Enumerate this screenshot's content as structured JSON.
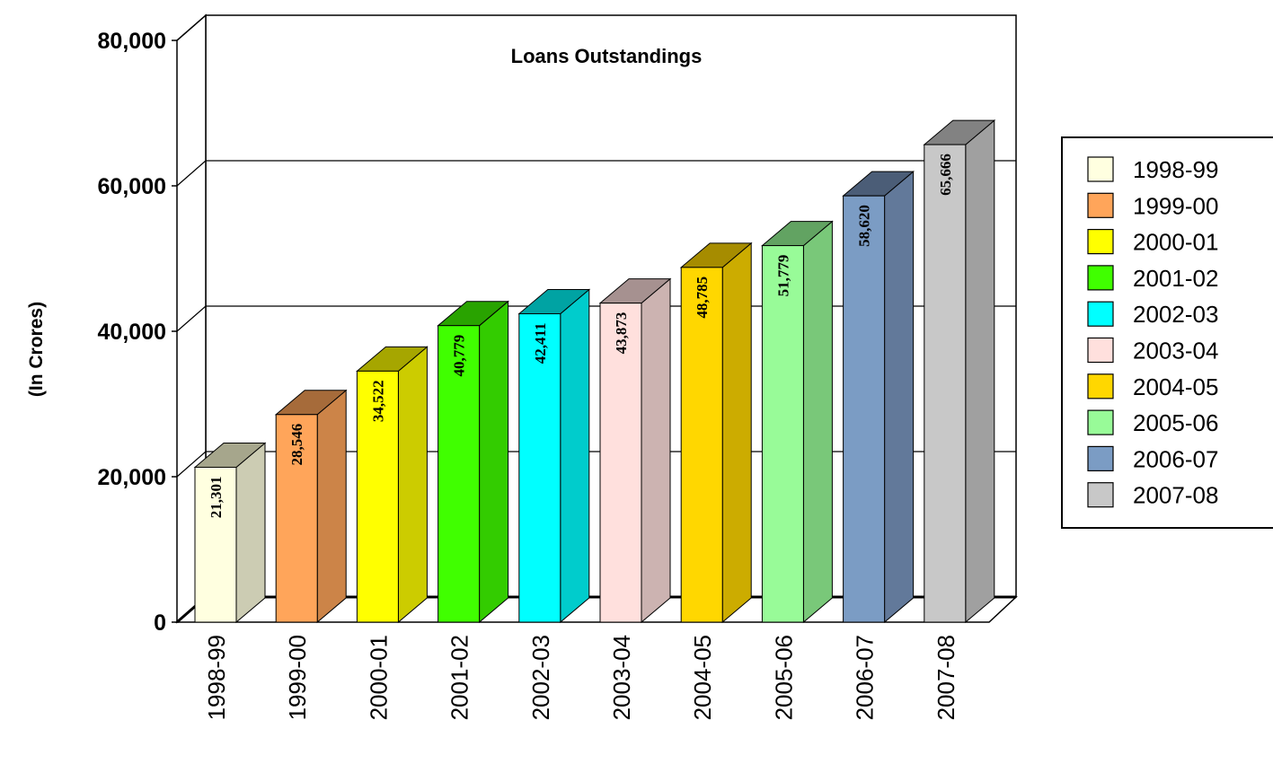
{
  "chart_data": {
    "type": "bar",
    "title": "Loans Outstandings",
    "xlabel": "",
    "ylabel": "(In Crores)",
    "categories": [
      "1998-99",
      "1999-00",
      "2000-01",
      "2001-02",
      "2002-03",
      "2003-04",
      "2004-05",
      "2005-06",
      "2006-07",
      "2007-08"
    ],
    "values": [
      21301,
      28546,
      34522,
      40779,
      42411,
      43873,
      48785,
      51779,
      58620,
      65666
    ],
    "data_labels": [
      "21,301",
      "28,546",
      "34,522",
      "40,779",
      "42,411",
      "43,873",
      "48,785",
      "51,779",
      "58,620",
      "65,666"
    ],
    "yticks": [
      "0",
      "20,000",
      "40,000",
      "60,000",
      "80,000"
    ],
    "ylim": [
      0,
      80000
    ],
    "grid": true,
    "legend_position": "right",
    "legend": [
      "1998-99",
      "1999-00",
      "2000-01",
      "2001-02",
      "2002-03",
      "2003-04",
      "2004-05",
      "2005-06",
      "2006-07",
      "2007-08"
    ],
    "colors": [
      "#FFFFE0",
      "#FFA55A",
      "#FFFF00",
      "#40FF00",
      "#00FFFF",
      "#FFE0DD",
      "#FFD700",
      "#98FB98",
      "#7B9CC4",
      "#C8C8C8"
    ],
    "side_colors": [
      "#CCCCB3",
      "#CC8448",
      "#CCCC00",
      "#33CC00",
      "#00CCCC",
      "#CCB3B1",
      "#CCAC00",
      "#79C879",
      "#62799A",
      "#A0A0A0"
    ],
    "top_colors": [
      "#A6A68C",
      "#A66B3A",
      "#A6A600",
      "#29A300",
      "#00A3A3",
      "#A69190",
      "#A68C00",
      "#62A362",
      "#4B5D77",
      "#828282"
    ]
  }
}
